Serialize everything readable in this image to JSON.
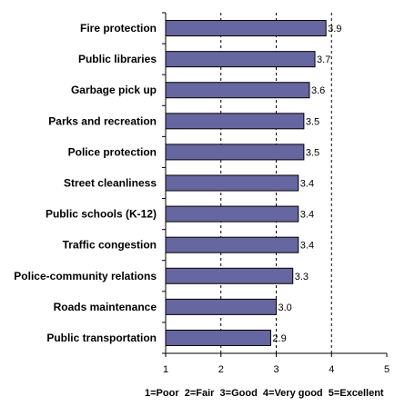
{
  "chart_data": {
    "type": "bar",
    "orientation": "horizontal",
    "categories": [
      "Fire protection",
      "Public libraries",
      "Garbage pick up",
      "Parks and recreation",
      "Police protection",
      "Street cleanliness",
      "Public schools (K-12)",
      "Traffic congestion",
      "Police-community relations",
      "Roads maintenance",
      "Public transportation"
    ],
    "values": [
      3.9,
      3.7,
      3.6,
      3.5,
      3.5,
      3.4,
      3.4,
      3.4,
      3.3,
      3.0,
      2.9
    ],
    "value_labels": [
      "3.9",
      "3.7",
      "3.6",
      "3.5",
      "3.5",
      "3.4",
      "3.4",
      "3.4",
      "3.3",
      "3.0",
      "2.9"
    ],
    "xlim": [
      1,
      5
    ],
    "xticks": [
      "1",
      "2",
      "3",
      "4",
      "5"
    ],
    "grid": "dashed vertical lines",
    "bar_color": "#6666A0",
    "scale_legend": "1=Poor  2=Fair  3=Good  4=Very good  5=Excellent"
  }
}
